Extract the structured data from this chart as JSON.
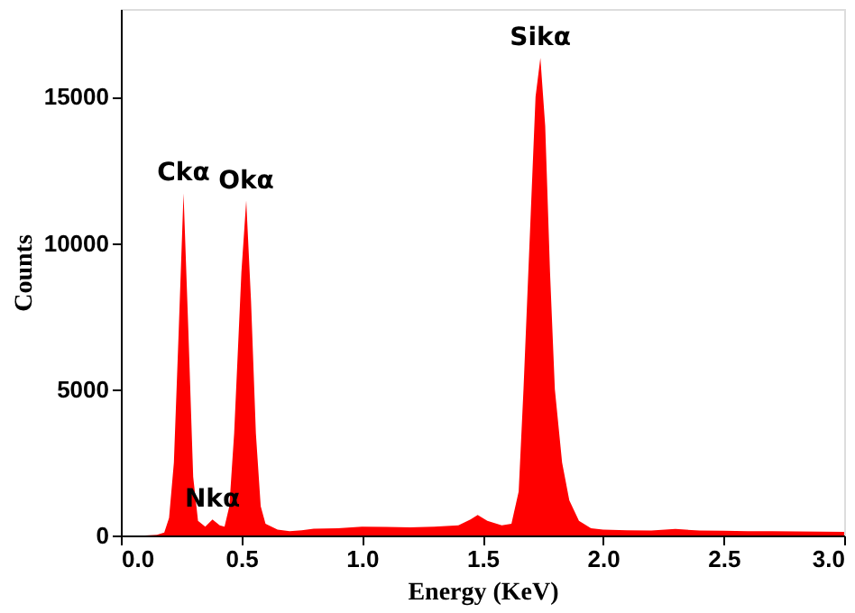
{
  "chart_data": {
    "type": "area",
    "xlabel": "Energy (KeV)",
    "ylabel": "Counts",
    "x": [
      0.0,
      0.1,
      0.15,
      0.18,
      0.2,
      0.22,
      0.24,
      0.26,
      0.28,
      0.3,
      0.32,
      0.35,
      0.38,
      0.41,
      0.43,
      0.45,
      0.47,
      0.5,
      0.52,
      0.54,
      0.56,
      0.58,
      0.6,
      0.65,
      0.7,
      0.75,
      0.8,
      0.9,
      1.0,
      1.1,
      1.2,
      1.3,
      1.4,
      1.45,
      1.48,
      1.52,
      1.58,
      1.62,
      1.65,
      1.67,
      1.7,
      1.72,
      1.74,
      1.76,
      1.78,
      1.8,
      1.83,
      1.86,
      1.9,
      1.95,
      2.0,
      2.1,
      2.2,
      2.3,
      2.4,
      2.5,
      2.6,
      2.7,
      2.8,
      2.9,
      3.0
    ],
    "series": [
      {
        "color": "#ff0000",
        "values": [
          0,
          0,
          20,
          100,
          600,
          2500,
          7000,
          11700,
          7000,
          2000,
          500,
          300,
          550,
          350,
          300,
          1000,
          3500,
          9000,
          11450,
          8000,
          3500,
          1000,
          400,
          200,
          150,
          180,
          230,
          250,
          300,
          290,
          280,
          300,
          350,
          550,
          700,
          500,
          350,
          400,
          1500,
          5000,
          11000,
          15000,
          16330,
          14000,
          9000,
          5000,
          2500,
          1200,
          500,
          250,
          200,
          180,
          170,
          220,
          170,
          160,
          150,
          150,
          140,
          130,
          120
        ]
      }
    ],
    "xlim": [
      0.0,
      3.0
    ],
    "xticks": [
      {
        "value": 0,
        "label": "0.0"
      },
      {
        "value": 0.5,
        "label": "0.5"
      },
      {
        "value": 1,
        "label": "1.0"
      },
      {
        "value": 1.5,
        "label": "1.5"
      },
      {
        "value": 2,
        "label": "2.0"
      },
      {
        "value": 2.5,
        "label": "2.5"
      },
      {
        "value": 3,
        "label": "3.0"
      }
    ],
    "ylim": [
      0,
      18000
    ],
    "yticks": [
      0,
      5000,
      10000,
      15000
    ],
    "grid": false,
    "annotations": [
      {
        "text": "Ckα",
        "x": 0.26,
        "y": 11700
      },
      {
        "text": "Nkα",
        "x": 0.38,
        "y": 550
      },
      {
        "text": "Okα",
        "x": 0.52,
        "y": 11450
      },
      {
        "text": "Sikα",
        "x": 1.74,
        "y": 16330
      }
    ]
  }
}
